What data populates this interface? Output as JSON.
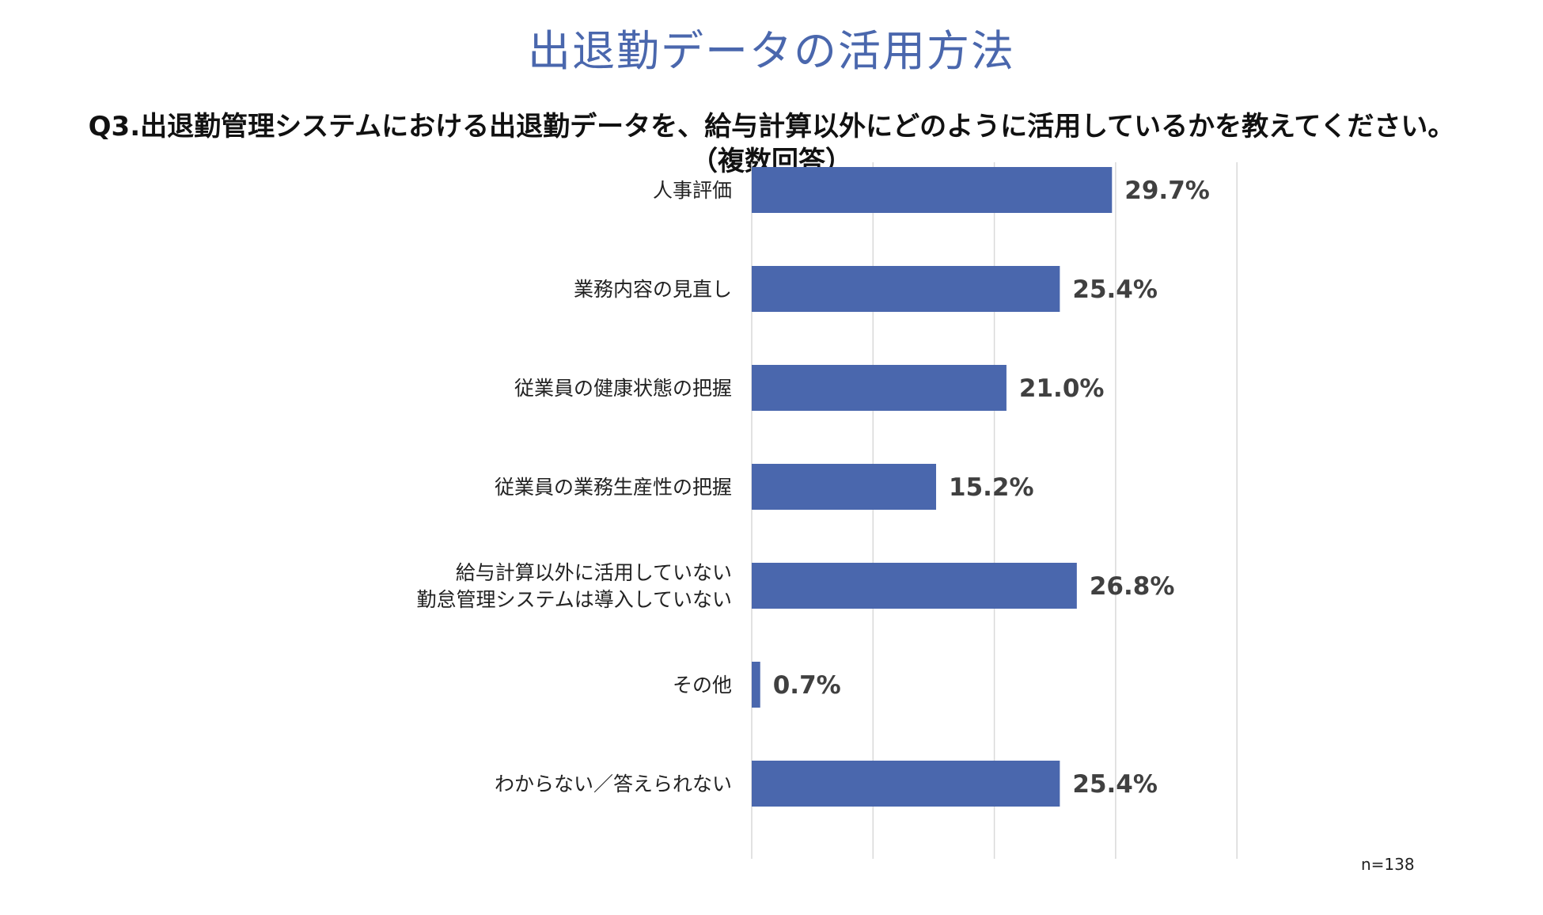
{
  "title": "出退勤データの活用方法",
  "subtitle_lines": [
    "Q3.出退勤管理システムにおける出退勤データを、給与計算以外にどのように活用しているかを教えてください。",
    "（複数回答）"
  ],
  "note": "n=138",
  "chart_data": {
    "type": "bar",
    "orientation": "horizontal",
    "title": "",
    "xlabel": "",
    "ylabel": "",
    "xlim": [
      0,
      40
    ],
    "grid": true,
    "legend": "none",
    "bar_color": "#4a67ad",
    "categories": [
      "人事評価",
      "業務内容の見直し",
      "従業員の健康状態の把握",
      "従業員の業務生産性の把握",
      "給与計算以外に活用していない\n勤怠管理システムは導入していない",
      "その他",
      "わからない／答えられない"
    ],
    "values": [
      29.7,
      25.4,
      21.0,
      15.2,
      26.8,
      0.7,
      25.4
    ],
    "value_labels": [
      "29.7%",
      "25.4%",
      "21.0%",
      "15.2%",
      "26.8%",
      "0.7%",
      "25.4%"
    ]
  }
}
